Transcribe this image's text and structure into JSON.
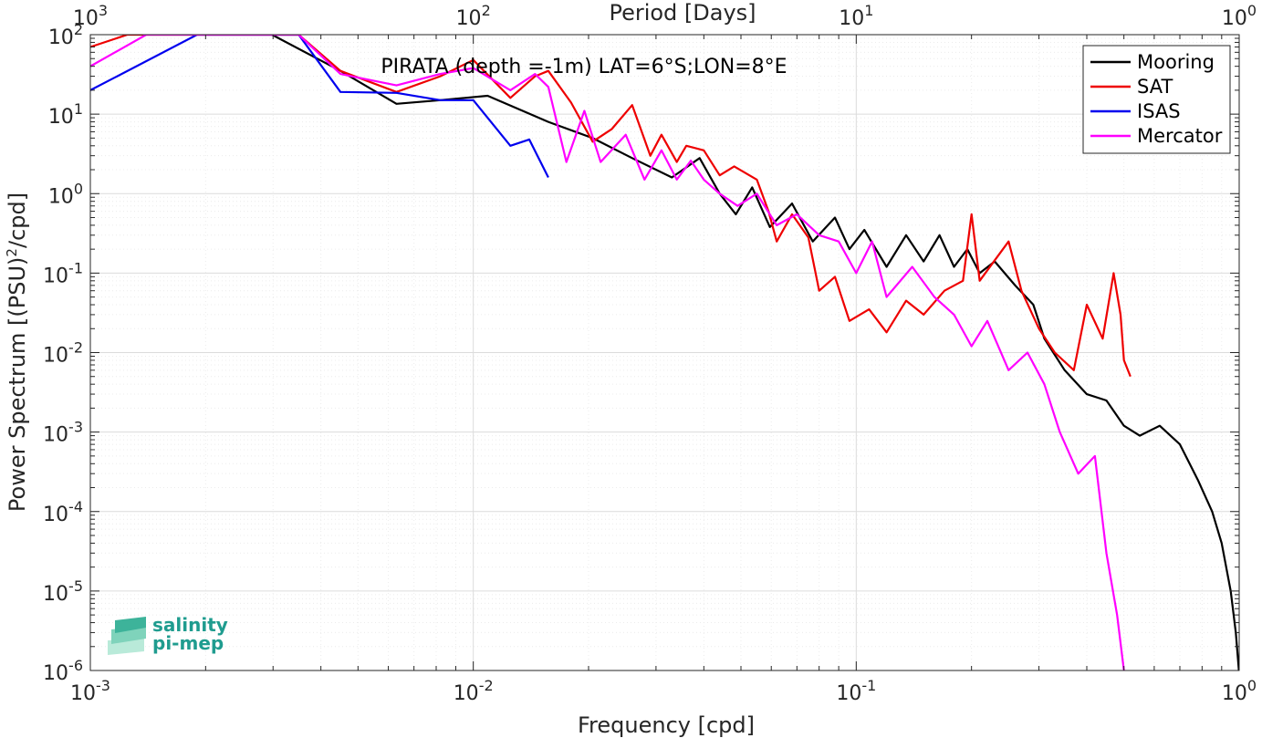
{
  "chart_data": {
    "type": "line",
    "title": "PIRATA (depth =-1m) LAT=6°S;LON=8°E",
    "xlabel": "Frequency [cpd]",
    "ylabel": "Power Spectrum [(PSU)",
    "ylabel_sup": "2",
    "ylabel_tail": "/cpd]",
    "top_xlabel": "Period [Days]",
    "x_scale": "log",
    "y_scale": "log",
    "xlim": [
      0.001,
      1
    ],
    "ylim": [
      1e-06,
      100
    ],
    "grid": true,
    "legend_position": "top-right",
    "x_ticks": [
      {
        "base": "10",
        "exp": "-3",
        "value": 0.001
      },
      {
        "base": "10",
        "exp": "-2",
        "value": 0.01
      },
      {
        "base": "10",
        "exp": "-1",
        "value": 0.1
      },
      {
        "base": "10",
        "exp": "0",
        "value": 1
      }
    ],
    "top_ticks": [
      {
        "base": "10",
        "exp": "3",
        "freq": 0.001
      },
      {
        "base": "10",
        "exp": "2",
        "freq": 0.01
      },
      {
        "base": "10",
        "exp": "1",
        "freq": 0.1
      },
      {
        "base": "10",
        "exp": "0",
        "freq": 1
      }
    ],
    "y_ticks": [
      {
        "base": "10",
        "exp": "2",
        "value": 100
      },
      {
        "base": "10",
        "exp": "1",
        "value": 10
      },
      {
        "base": "10",
        "exp": "0",
        "value": 1
      },
      {
        "base": "10",
        "exp": "-1",
        "value": 0.1
      },
      {
        "base": "10",
        "exp": "-2",
        "value": 0.01
      },
      {
        "base": "10",
        "exp": "-3",
        "value": 0.001
      },
      {
        "base": "10",
        "exp": "-4",
        "value": 0.0001
      },
      {
        "base": "10",
        "exp": "-5",
        "value": 1e-05
      },
      {
        "base": "10",
        "exp": "-6",
        "value": 1e-06
      }
    ],
    "series": [
      {
        "name": "Mooring",
        "color": "#000000",
        "points": [
          [
            0.00298,
            100
          ],
          [
            0.0045,
            35
          ],
          [
            0.0063,
            13.5
          ],
          [
            0.0082,
            15
          ],
          [
            0.0109,
            17
          ],
          [
            0.0157,
            8
          ],
          [
            0.0205,
            5
          ],
          [
            0.026,
            2.8
          ],
          [
            0.033,
            1.6
          ],
          [
            0.039,
            2.8
          ],
          [
            0.044,
            1.0
          ],
          [
            0.0485,
            0.55
          ],
          [
            0.0535,
            1.2
          ],
          [
            0.0595,
            0.38
          ],
          [
            0.068,
            0.75
          ],
          [
            0.077,
            0.25
          ],
          [
            0.088,
            0.5
          ],
          [
            0.096,
            0.2
          ],
          [
            0.105,
            0.35
          ],
          [
            0.12,
            0.12
          ],
          [
            0.135,
            0.3
          ],
          [
            0.15,
            0.14
          ],
          [
            0.165,
            0.3
          ],
          [
            0.18,
            0.12
          ],
          [
            0.195,
            0.2
          ],
          [
            0.21,
            0.1
          ],
          [
            0.23,
            0.14
          ],
          [
            0.26,
            0.07
          ],
          [
            0.29,
            0.04
          ],
          [
            0.31,
            0.015
          ],
          [
            0.35,
            0.006
          ],
          [
            0.4,
            0.003
          ],
          [
            0.45,
            0.0025
          ],
          [
            0.5,
            0.0012
          ],
          [
            0.55,
            0.0009
          ],
          [
            0.62,
            0.0012
          ],
          [
            0.7,
            0.0007
          ],
          [
            0.78,
            0.00025
          ],
          [
            0.85,
            0.0001
          ],
          [
            0.9,
            4e-05
          ],
          [
            0.95,
            1e-05
          ],
          [
            0.98,
            3e-06
          ],
          [
            1.0,
            9e-07
          ]
        ]
      },
      {
        "name": "SAT",
        "color": "#ee0000",
        "points": [
          [
            0.001,
            70
          ],
          [
            0.00125,
            100
          ],
          [
            0.0035,
            100
          ],
          [
            0.0045,
            35
          ],
          [
            0.0063,
            19
          ],
          [
            0.0082,
            30
          ],
          [
            0.01,
            48
          ],
          [
            0.0125,
            16
          ],
          [
            0.0145,
            30
          ],
          [
            0.0157,
            35
          ],
          [
            0.018,
            14
          ],
          [
            0.0205,
            4.5
          ],
          [
            0.023,
            6.5
          ],
          [
            0.026,
            13
          ],
          [
            0.029,
            3
          ],
          [
            0.031,
            5.5
          ],
          [
            0.034,
            2.5
          ],
          [
            0.036,
            4
          ],
          [
            0.04,
            3.5
          ],
          [
            0.044,
            1.7
          ],
          [
            0.048,
            2.2
          ],
          [
            0.055,
            1.5
          ],
          [
            0.059,
            0.6
          ],
          [
            0.062,
            0.25
          ],
          [
            0.068,
            0.55
          ],
          [
            0.075,
            0.28
          ],
          [
            0.08,
            0.06
          ],
          [
            0.088,
            0.09
          ],
          [
            0.096,
            0.025
          ],
          [
            0.108,
            0.035
          ],
          [
            0.12,
            0.018
          ],
          [
            0.135,
            0.045
          ],
          [
            0.15,
            0.03
          ],
          [
            0.17,
            0.06
          ],
          [
            0.19,
            0.08
          ],
          [
            0.2,
            0.55
          ],
          [
            0.21,
            0.08
          ],
          [
            0.25,
            0.25
          ],
          [
            0.27,
            0.06
          ],
          [
            0.3,
            0.02
          ],
          [
            0.33,
            0.01
          ],
          [
            0.37,
            0.006
          ],
          [
            0.4,
            0.04
          ],
          [
            0.44,
            0.015
          ],
          [
            0.47,
            0.1
          ],
          [
            0.49,
            0.03
          ],
          [
            0.5,
            0.008
          ],
          [
            0.52,
            0.005
          ]
        ]
      },
      {
        "name": "ISAS",
        "color": "#0000ee",
        "points": [
          [
            0.001,
            20
          ],
          [
            0.0019,
            100
          ],
          [
            0.0035,
            100
          ],
          [
            0.0045,
            19
          ],
          [
            0.0063,
            18.5
          ],
          [
            0.0082,
            15
          ],
          [
            0.01,
            15
          ],
          [
            0.0125,
            4
          ],
          [
            0.014,
            4.8
          ],
          [
            0.0157,
            1.6
          ]
        ]
      },
      {
        "name": "Mercator",
        "color": "#ff00ff",
        "points": [
          [
            0.001,
            40
          ],
          [
            0.0014,
            100
          ],
          [
            0.0035,
            100
          ],
          [
            0.0045,
            32
          ],
          [
            0.0063,
            23
          ],
          [
            0.0082,
            32
          ],
          [
            0.01,
            38
          ],
          [
            0.0125,
            20
          ],
          [
            0.0145,
            32
          ],
          [
            0.0157,
            22
          ],
          [
            0.0175,
            2.5
          ],
          [
            0.0195,
            11
          ],
          [
            0.0215,
            2.5
          ],
          [
            0.025,
            5.5
          ],
          [
            0.028,
            1.5
          ],
          [
            0.031,
            3.5
          ],
          [
            0.034,
            1.5
          ],
          [
            0.037,
            2.6
          ],
          [
            0.04,
            1.5
          ],
          [
            0.044,
            1.0
          ],
          [
            0.049,
            0.7
          ],
          [
            0.055,
            1.0
          ],
          [
            0.062,
            0.4
          ],
          [
            0.07,
            0.55
          ],
          [
            0.08,
            0.3
          ],
          [
            0.09,
            0.25
          ],
          [
            0.1,
            0.1
          ],
          [
            0.11,
            0.25
          ],
          [
            0.12,
            0.05
          ],
          [
            0.14,
            0.12
          ],
          [
            0.16,
            0.05
          ],
          [
            0.18,
            0.03
          ],
          [
            0.2,
            0.012
          ],
          [
            0.22,
            0.025
          ],
          [
            0.25,
            0.006
          ],
          [
            0.28,
            0.01
          ],
          [
            0.31,
            0.004
          ],
          [
            0.34,
            0.001
          ],
          [
            0.38,
            0.0003
          ],
          [
            0.42,
            0.0005
          ],
          [
            0.45,
            3e-05
          ],
          [
            0.48,
            5e-06
          ],
          [
            0.5,
            1e-06
          ]
        ]
      }
    ]
  },
  "logo": {
    "line1": "salinity",
    "line2": "pi-mep"
  }
}
